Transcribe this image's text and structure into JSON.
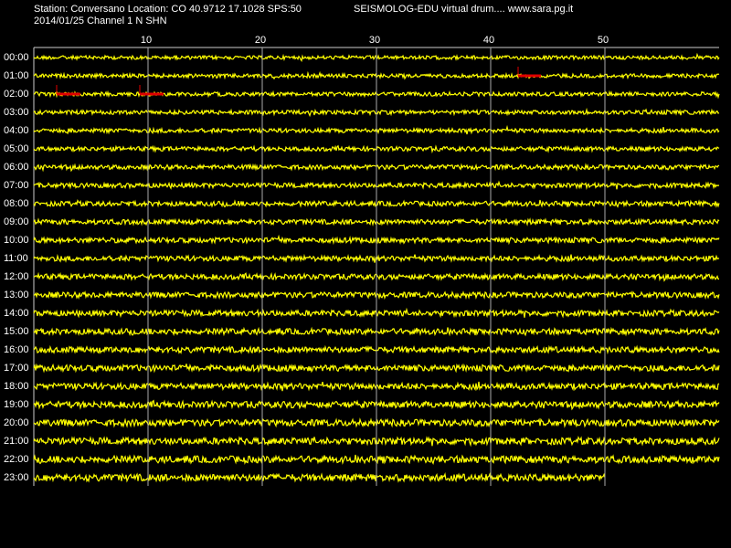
{
  "chart_data": {
    "type": "helicorder",
    "title": "Station: Conversano Location: CO 40.9712 17.1028 SPS:50",
    "subtitle": "SEISMOLOG-EDU virtual drum.... www.sara.pg.it",
    "caption": "2014/01/25  Channel 1 N SHN",
    "categories": [
      "00:00",
      "01:00",
      "02:00",
      "03:00",
      "04:00",
      "05:00",
      "06:00",
      "07:00",
      "08:00",
      "09:00",
      "10:00",
      "11:00",
      "12:00",
      "13:00",
      "14:00",
      "15:00",
      "16:00",
      "17:00",
      "18:00",
      "19:00",
      "20:00",
      "21:00",
      "22:00",
      "23:00"
    ],
    "xlim": [
      0,
      60
    ],
    "xticks": [
      10,
      20,
      30,
      40,
      50
    ],
    "grid": true,
    "color": "#ffff00"
  }
}
